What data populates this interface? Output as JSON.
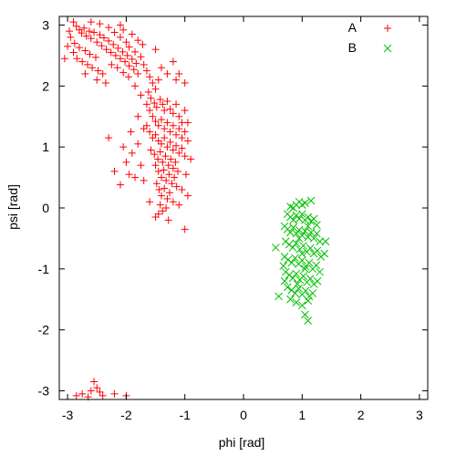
{
  "chart_data": {
    "type": "scatter",
    "title": "",
    "xlabel": "phi [rad]",
    "ylabel": "psi [rad]",
    "xlim": [
      -3.14159,
      3.14159
    ],
    "ylim": [
      -3.14159,
      3.14159
    ],
    "x_ticks": [
      -3,
      -2,
      -1,
      0,
      1,
      2,
      3
    ],
    "y_ticks": [
      -3,
      -2,
      -1,
      0,
      1,
      2,
      3
    ],
    "x_tick_labels": [
      "-3",
      "-2",
      "-1",
      "0",
      "1",
      "2",
      "3"
    ],
    "y_tick_labels": [
      "-3",
      "-2",
      "-1",
      "0",
      "1",
      "2",
      "3"
    ],
    "grid": false,
    "legend_position": "top-right",
    "series": [
      {
        "name": "A",
        "marker": "plus",
        "color": "#ff0000",
        "points": [
          [
            -2.9,
            3.05
          ],
          [
            -2.85,
            2.98
          ],
          [
            -2.8,
            2.92
          ],
          [
            -2.76,
            2.87
          ],
          [
            -2.72,
            2.95
          ],
          [
            -2.68,
            2.82
          ],
          [
            -2.63,
            2.9
          ],
          [
            -2.6,
            2.78
          ],
          [
            -2.55,
            2.88
          ],
          [
            -2.5,
            2.72
          ],
          [
            -2.45,
            2.84
          ],
          [
            -2.42,
            2.66
          ],
          [
            -2.38,
            2.79
          ],
          [
            -2.34,
            2.6
          ],
          [
            -2.3,
            2.74
          ],
          [
            -2.26,
            2.55
          ],
          [
            -2.22,
            2.68
          ],
          [
            -2.18,
            2.5
          ],
          [
            -2.14,
            2.62
          ],
          [
            -2.1,
            2.45
          ],
          [
            -2.06,
            2.56
          ],
          [
            -2.02,
            2.4
          ],
          [
            -1.98,
            2.5
          ],
          [
            -1.95,
            2.33
          ],
          [
            -1.9,
            2.44
          ],
          [
            -1.87,
            2.27
          ],
          [
            -1.83,
            2.37
          ],
          [
            -1.8,
            2.2
          ],
          [
            -2.95,
            2.8
          ],
          [
            -2.88,
            2.7
          ],
          [
            -2.8,
            2.63
          ],
          [
            -2.7,
            2.58
          ],
          [
            -2.62,
            2.52
          ],
          [
            -2.52,
            2.47
          ],
          [
            -2.9,
            2.55
          ],
          [
            -2.84,
            2.45
          ],
          [
            -2.75,
            2.4
          ],
          [
            -2.66,
            2.35
          ],
          [
            -2.58,
            2.3
          ],
          [
            -2.48,
            2.25
          ],
          [
            -2.4,
            2.2
          ],
          [
            -3.05,
            2.45
          ],
          [
            -3.0,
            2.65
          ],
          [
            -2.97,
            2.9
          ],
          [
            -2.6,
            3.05
          ],
          [
            -2.45,
            3.02
          ],
          [
            -2.3,
            2.96
          ],
          [
            -2.2,
            2.88
          ],
          [
            -2.1,
            2.8
          ],
          [
            -2.0,
            2.72
          ],
          [
            -1.95,
            2.64
          ],
          [
            -1.85,
            2.56
          ],
          [
            -1.75,
            2.48
          ],
          [
            -1.7,
            2.35
          ],
          [
            -1.65,
            2.25
          ],
          [
            -1.6,
            2.15
          ],
          [
            -2.25,
            2.35
          ],
          [
            -2.15,
            2.3
          ],
          [
            -2.05,
            2.22
          ],
          [
            -1.96,
            2.15
          ],
          [
            -2.35,
            2.05
          ],
          [
            -2.5,
            2.1
          ],
          [
            -2.7,
            2.2
          ],
          [
            -2.1,
            3.0
          ],
          [
            -2.05,
            2.92
          ],
          [
            -1.9,
            2.85
          ],
          [
            -1.8,
            2.75
          ],
          [
            -1.72,
            2.68
          ],
          [
            -1.5,
            2.6
          ],
          [
            -1.2,
            2.4
          ],
          [
            -1.1,
            2.2
          ],
          [
            -1.0,
            2.05
          ],
          [
            -1.15,
            2.1
          ],
          [
            -1.3,
            2.2
          ],
          [
            -1.4,
            2.3
          ],
          [
            -1.45,
            2.1
          ],
          [
            -1.5,
            1.95
          ],
          [
            -1.55,
            2.05
          ],
          [
            -1.62,
            1.9
          ],
          [
            -1.58,
            1.8
          ],
          [
            -1.52,
            1.72
          ],
          [
            -1.48,
            1.65
          ],
          [
            -1.42,
            1.78
          ],
          [
            -1.38,
            1.7
          ],
          [
            -1.35,
            1.6
          ],
          [
            -1.3,
            1.75
          ],
          [
            -1.25,
            1.62
          ],
          [
            -1.2,
            1.55
          ],
          [
            -1.15,
            1.7
          ],
          [
            -1.1,
            1.5
          ],
          [
            -1.05,
            1.4
          ],
          [
            -1.6,
            1.6
          ],
          [
            -1.55,
            1.5
          ],
          [
            -1.5,
            1.42
          ],
          [
            -1.45,
            1.35
          ],
          [
            -1.4,
            1.45
          ],
          [
            -1.35,
            1.3
          ],
          [
            -1.3,
            1.4
          ],
          [
            -1.25,
            1.25
          ],
          [
            -1.2,
            1.35
          ],
          [
            -1.15,
            1.2
          ],
          [
            -1.1,
            1.3
          ],
          [
            -1.05,
            1.15
          ],
          [
            -1.0,
            1.25
          ],
          [
            -0.95,
            1.1
          ],
          [
            -1.65,
            1.35
          ],
          [
            -1.6,
            1.25
          ],
          [
            -1.55,
            1.15
          ],
          [
            -1.5,
            1.2
          ],
          [
            -1.45,
            1.1
          ],
          [
            -1.4,
            1.05
          ],
          [
            -1.35,
            1.15
          ],
          [
            -1.3,
            1.0
          ],
          [
            -1.25,
            1.08
          ],
          [
            -1.2,
            0.95
          ],
          [
            -1.15,
            1.02
          ],
          [
            -1.1,
            0.9
          ],
          [
            -1.05,
            0.98
          ],
          [
            -1.0,
            0.85
          ],
          [
            -1.58,
            0.95
          ],
          [
            -1.52,
            0.88
          ],
          [
            -1.46,
            0.8
          ],
          [
            -1.42,
            0.92
          ],
          [
            -1.38,
            0.75
          ],
          [
            -1.33,
            0.85
          ],
          [
            -1.28,
            0.7
          ],
          [
            -1.24,
            0.8
          ],
          [
            -1.2,
            0.65
          ],
          [
            -1.16,
            0.75
          ],
          [
            -1.12,
            0.6
          ],
          [
            -1.5,
            0.7
          ],
          [
            -1.45,
            0.6
          ],
          [
            -1.4,
            0.5
          ],
          [
            -1.36,
            0.62
          ],
          [
            -1.32,
            0.45
          ],
          [
            -1.27,
            0.55
          ],
          [
            -1.22,
            0.4
          ],
          [
            -1.18,
            0.5
          ],
          [
            -1.14,
            0.35
          ],
          [
            -1.48,
            0.4
          ],
          [
            -1.44,
            0.3
          ],
          [
            -1.4,
            0.2
          ],
          [
            -1.35,
            0.32
          ],
          [
            -1.3,
            0.15
          ],
          [
            -1.26,
            0.25
          ],
          [
            -1.2,
            0.1
          ],
          [
            -1.42,
            0.05
          ],
          [
            -1.38,
            -0.05
          ],
          [
            -1.32,
            0.0
          ],
          [
            -1.5,
            -0.15
          ],
          [
            -1.28,
            -0.2
          ],
          [
            -1.45,
            -0.1
          ],
          [
            -1.0,
            -0.35
          ],
          [
            -1.6,
            0.1
          ],
          [
            -1.7,
            0.45
          ],
          [
            -1.75,
            0.7
          ],
          [
            -1.85,
            0.5
          ],
          [
            -1.9,
            0.9
          ],
          [
            -2.0,
            0.75
          ],
          [
            -2.1,
            0.38
          ],
          [
            -2.2,
            0.6
          ],
          [
            -1.8,
            1.05
          ],
          [
            -1.7,
            1.3
          ],
          [
            -1.8,
            1.5
          ],
          [
            -1.92,
            1.25
          ],
          [
            -2.05,
            1.0
          ],
          [
            -2.3,
            1.15
          ],
          [
            -1.95,
            0.55
          ],
          [
            -1.65,
            1.7
          ],
          [
            -1.75,
            1.85
          ],
          [
            -1.85,
            2.0
          ],
          [
            -1.0,
            1.6
          ],
          [
            -0.95,
            1.4
          ],
          [
            -0.9,
            0.8
          ],
          [
            -0.98,
            0.55
          ],
          [
            -1.05,
            0.3
          ],
          [
            -0.95,
            0.2
          ],
          [
            -1.1,
            0.05
          ],
          [
            -2.55,
            -2.85
          ],
          [
            -2.5,
            -2.95
          ],
          [
            -2.45,
            -3.02
          ],
          [
            -2.6,
            -3.0
          ],
          [
            -2.75,
            -3.05
          ],
          [
            -2.85,
            -3.08
          ],
          [
            -2.4,
            -3.08
          ],
          [
            -2.2,
            -3.05
          ],
          [
            -2.0,
            -3.08
          ],
          [
            -2.65,
            -3.1
          ]
        ]
      },
      {
        "name": "B",
        "marker": "cross",
        "color": "#00c000",
        "points": [
          [
            0.85,
            0.0
          ],
          [
            0.9,
            0.05
          ],
          [
            0.95,
            0.1
          ],
          [
            1.0,
            0.05
          ],
          [
            1.05,
            0.08
          ],
          [
            1.15,
            0.12
          ],
          [
            0.8,
            0.02
          ],
          [
            0.75,
            -0.1
          ],
          [
            0.8,
            -0.15
          ],
          [
            0.85,
            -0.2
          ],
          [
            0.9,
            -0.12
          ],
          [
            0.95,
            -0.18
          ],
          [
            1.0,
            -0.1
          ],
          [
            1.05,
            -0.2
          ],
          [
            1.1,
            -0.15
          ],
          [
            1.15,
            -0.22
          ],
          [
            1.2,
            -0.18
          ],
          [
            1.25,
            -0.28
          ],
          [
            0.7,
            -0.3
          ],
          [
            0.75,
            -0.35
          ],
          [
            0.8,
            -0.4
          ],
          [
            0.85,
            -0.32
          ],
          [
            0.9,
            -0.42
          ],
          [
            0.95,
            -0.36
          ],
          [
            1.0,
            -0.45
          ],
          [
            1.05,
            -0.38
          ],
          [
            1.1,
            -0.48
          ],
          [
            1.15,
            -0.4
          ],
          [
            1.2,
            -0.5
          ],
          [
            1.25,
            -0.42
          ],
          [
            1.3,
            -0.55
          ],
          [
            0.72,
            -0.55
          ],
          [
            0.78,
            -0.6
          ],
          [
            0.84,
            -0.65
          ],
          [
            0.9,
            -0.58
          ],
          [
            0.96,
            -0.68
          ],
          [
            1.02,
            -0.62
          ],
          [
            1.08,
            -0.72
          ],
          [
            1.14,
            -0.66
          ],
          [
            1.2,
            -0.75
          ],
          [
            1.26,
            -0.7
          ],
          [
            1.32,
            -0.8
          ],
          [
            0.7,
            -0.8
          ],
          [
            0.76,
            -0.85
          ],
          [
            0.82,
            -0.9
          ],
          [
            0.88,
            -0.82
          ],
          [
            0.94,
            -0.92
          ],
          [
            1.0,
            -0.86
          ],
          [
            1.06,
            -0.96
          ],
          [
            1.12,
            -0.9
          ],
          [
            1.18,
            -1.0
          ],
          [
            1.24,
            -0.94
          ],
          [
            1.3,
            -1.05
          ],
          [
            0.72,
            -1.05
          ],
          [
            0.78,
            -1.1
          ],
          [
            0.84,
            -1.15
          ],
          [
            0.9,
            -1.08
          ],
          [
            0.96,
            -1.18
          ],
          [
            1.02,
            -1.12
          ],
          [
            1.08,
            -1.22
          ],
          [
            1.14,
            -1.16
          ],
          [
            1.2,
            -1.25
          ],
          [
            1.26,
            -1.2
          ],
          [
            0.75,
            -1.3
          ],
          [
            0.82,
            -1.35
          ],
          [
            0.88,
            -1.4
          ],
          [
            0.94,
            -1.32
          ],
          [
            1.0,
            -1.42
          ],
          [
            1.06,
            -1.36
          ],
          [
            1.12,
            -1.45
          ],
          [
            1.18,
            -1.4
          ],
          [
            0.8,
            -1.5
          ],
          [
            0.9,
            -1.55
          ],
          [
            1.0,
            -1.6
          ],
          [
            1.1,
            -1.52
          ],
          [
            0.6,
            -1.45
          ],
          [
            0.55,
            -0.65
          ],
          [
            1.05,
            -1.75
          ],
          [
            1.1,
            -1.85
          ],
          [
            0.7,
            -1.2
          ],
          [
            0.68,
            -0.95
          ],
          [
            1.38,
            -0.75
          ],
          [
            1.4,
            -0.55
          ],
          [
            0.95,
            -0.5
          ],
          [
            1.0,
            -0.75
          ],
          [
            1.05,
            -1.0
          ],
          [
            0.92,
            -1.25
          ],
          [
            1.1,
            -0.3
          ]
        ]
      }
    ]
  }
}
